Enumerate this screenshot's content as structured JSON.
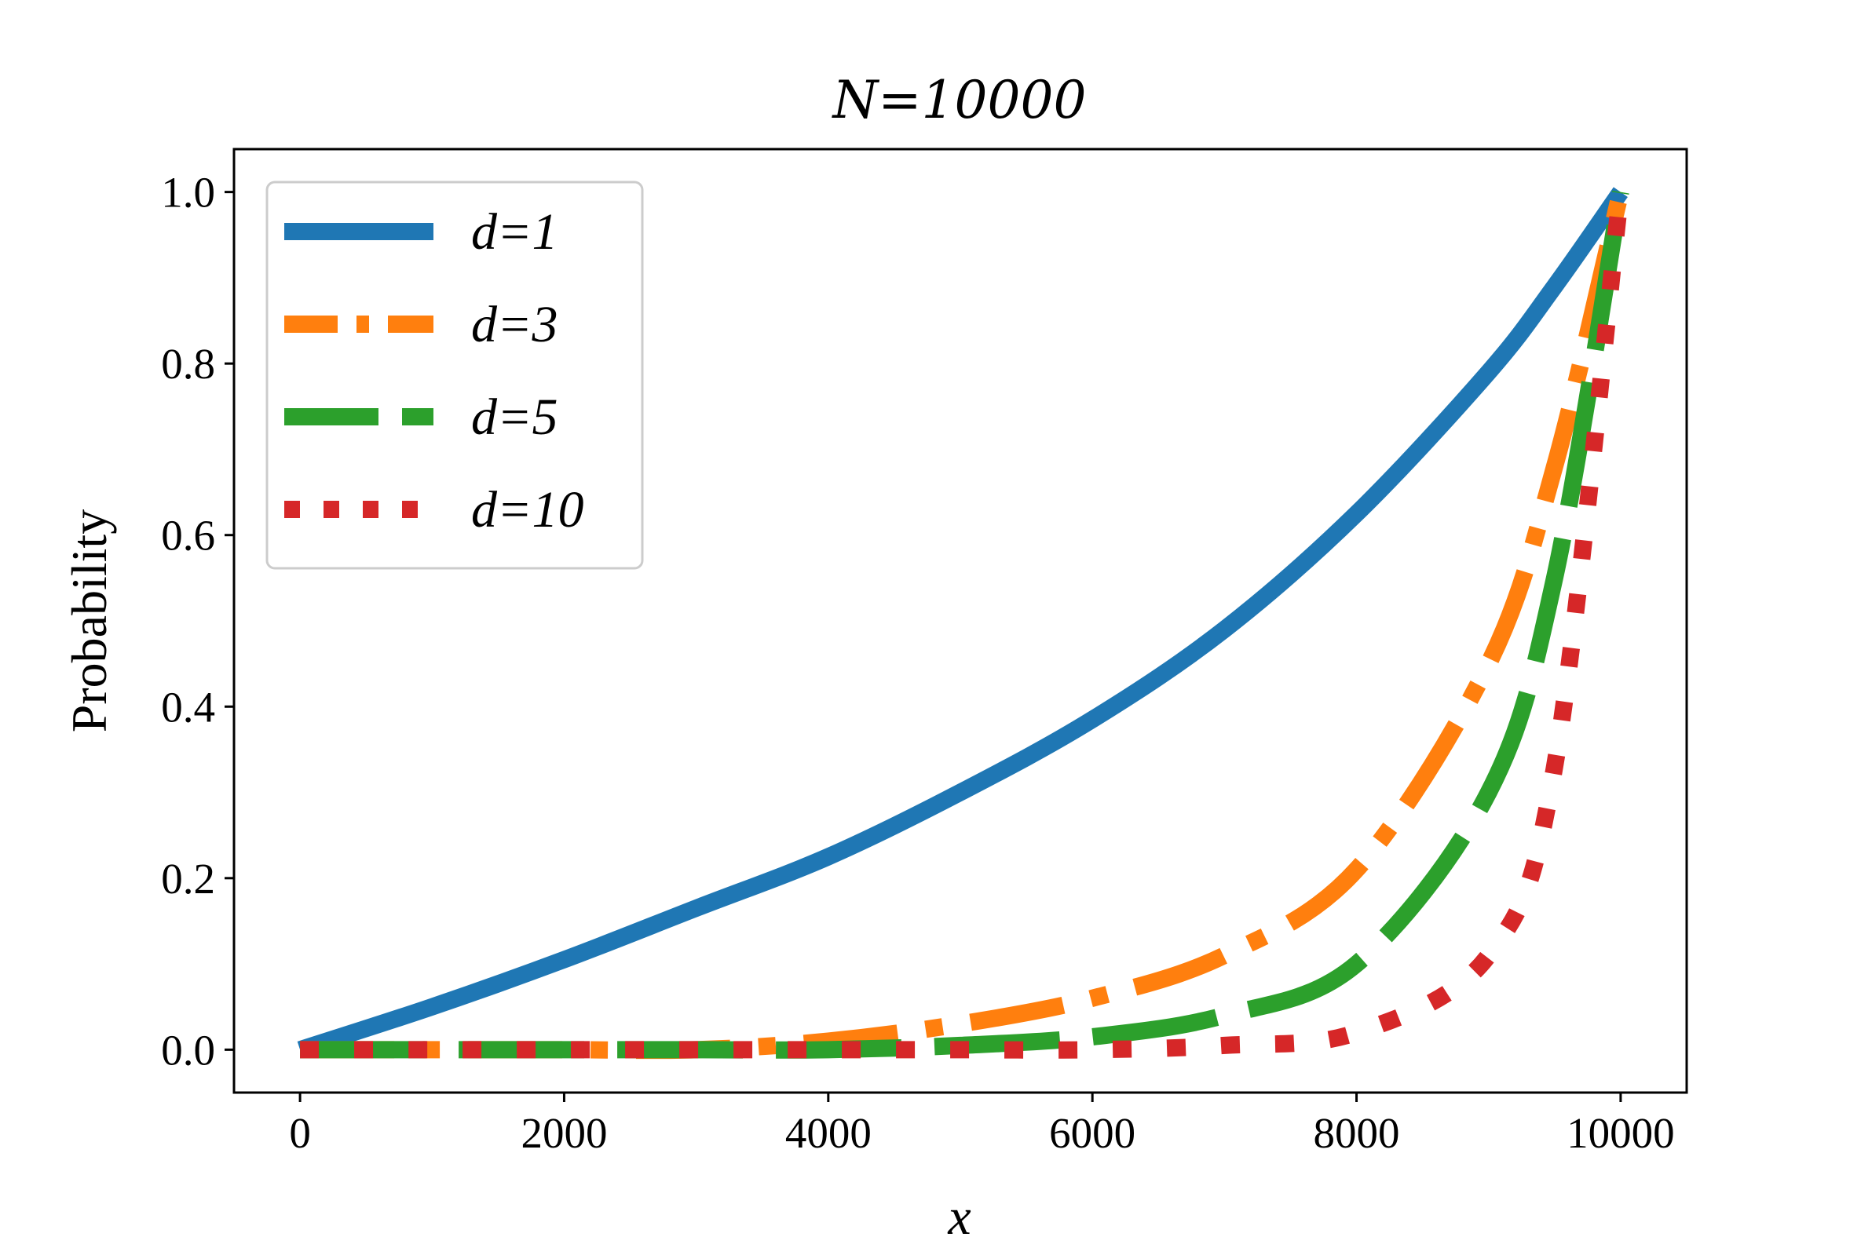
{
  "chart_data": {
    "type": "line",
    "title": "N=10000",
    "xlabel": "x",
    "ylabel": "Probability",
    "xlim": [
      -500,
      10500
    ],
    "ylim": [
      -0.05,
      1.05
    ],
    "x_ticks": [
      0,
      2000,
      4000,
      6000,
      8000,
      10000
    ],
    "x_tick_labels": [
      "0",
      "2000",
      "4000",
      "6000",
      "8000",
      "10000"
    ],
    "y_ticks": [
      0.0,
      0.2,
      0.4,
      0.6,
      0.8,
      1.0
    ],
    "y_tick_labels": [
      "0.0",
      "0.2",
      "0.4",
      "0.6",
      "0.8",
      "1.0"
    ],
    "grid": false,
    "legend_position": "top-left",
    "x": [
      0,
      1000,
      2000,
      3000,
      4000,
      5000,
      6000,
      7000,
      8000,
      9000,
      9500,
      10000
    ],
    "series": [
      {
        "name": "d=1",
        "color": "#1f77b4",
        "style": "solid",
        "values": [
          0.0,
          0.05,
          0.105,
          0.165,
          0.225,
          0.3,
          0.385,
          0.49,
          0.625,
          0.79,
          0.89,
          1.0
        ]
      },
      {
        "name": "d=3",
        "color": "#ff7f0e",
        "style": "dashdot",
        "values": [
          0.0,
          0.0,
          0.0,
          0.0,
          0.01,
          0.03,
          0.06,
          0.11,
          0.21,
          0.45,
          0.68,
          1.0
        ]
      },
      {
        "name": "d=5",
        "color": "#2ca02c",
        "style": "longdash",
        "values": [
          0.0,
          0.0,
          0.0,
          0.0,
          0.0,
          0.005,
          0.015,
          0.04,
          0.1,
          0.3,
          0.55,
          1.0
        ]
      },
      {
        "name": "d=10",
        "color": "#d62728",
        "style": "dotted",
        "values": [
          0.0,
          0.0,
          0.0,
          0.0,
          0.0,
          0.0,
          0.0,
          0.005,
          0.02,
          0.11,
          0.33,
          1.0
        ]
      }
    ]
  }
}
